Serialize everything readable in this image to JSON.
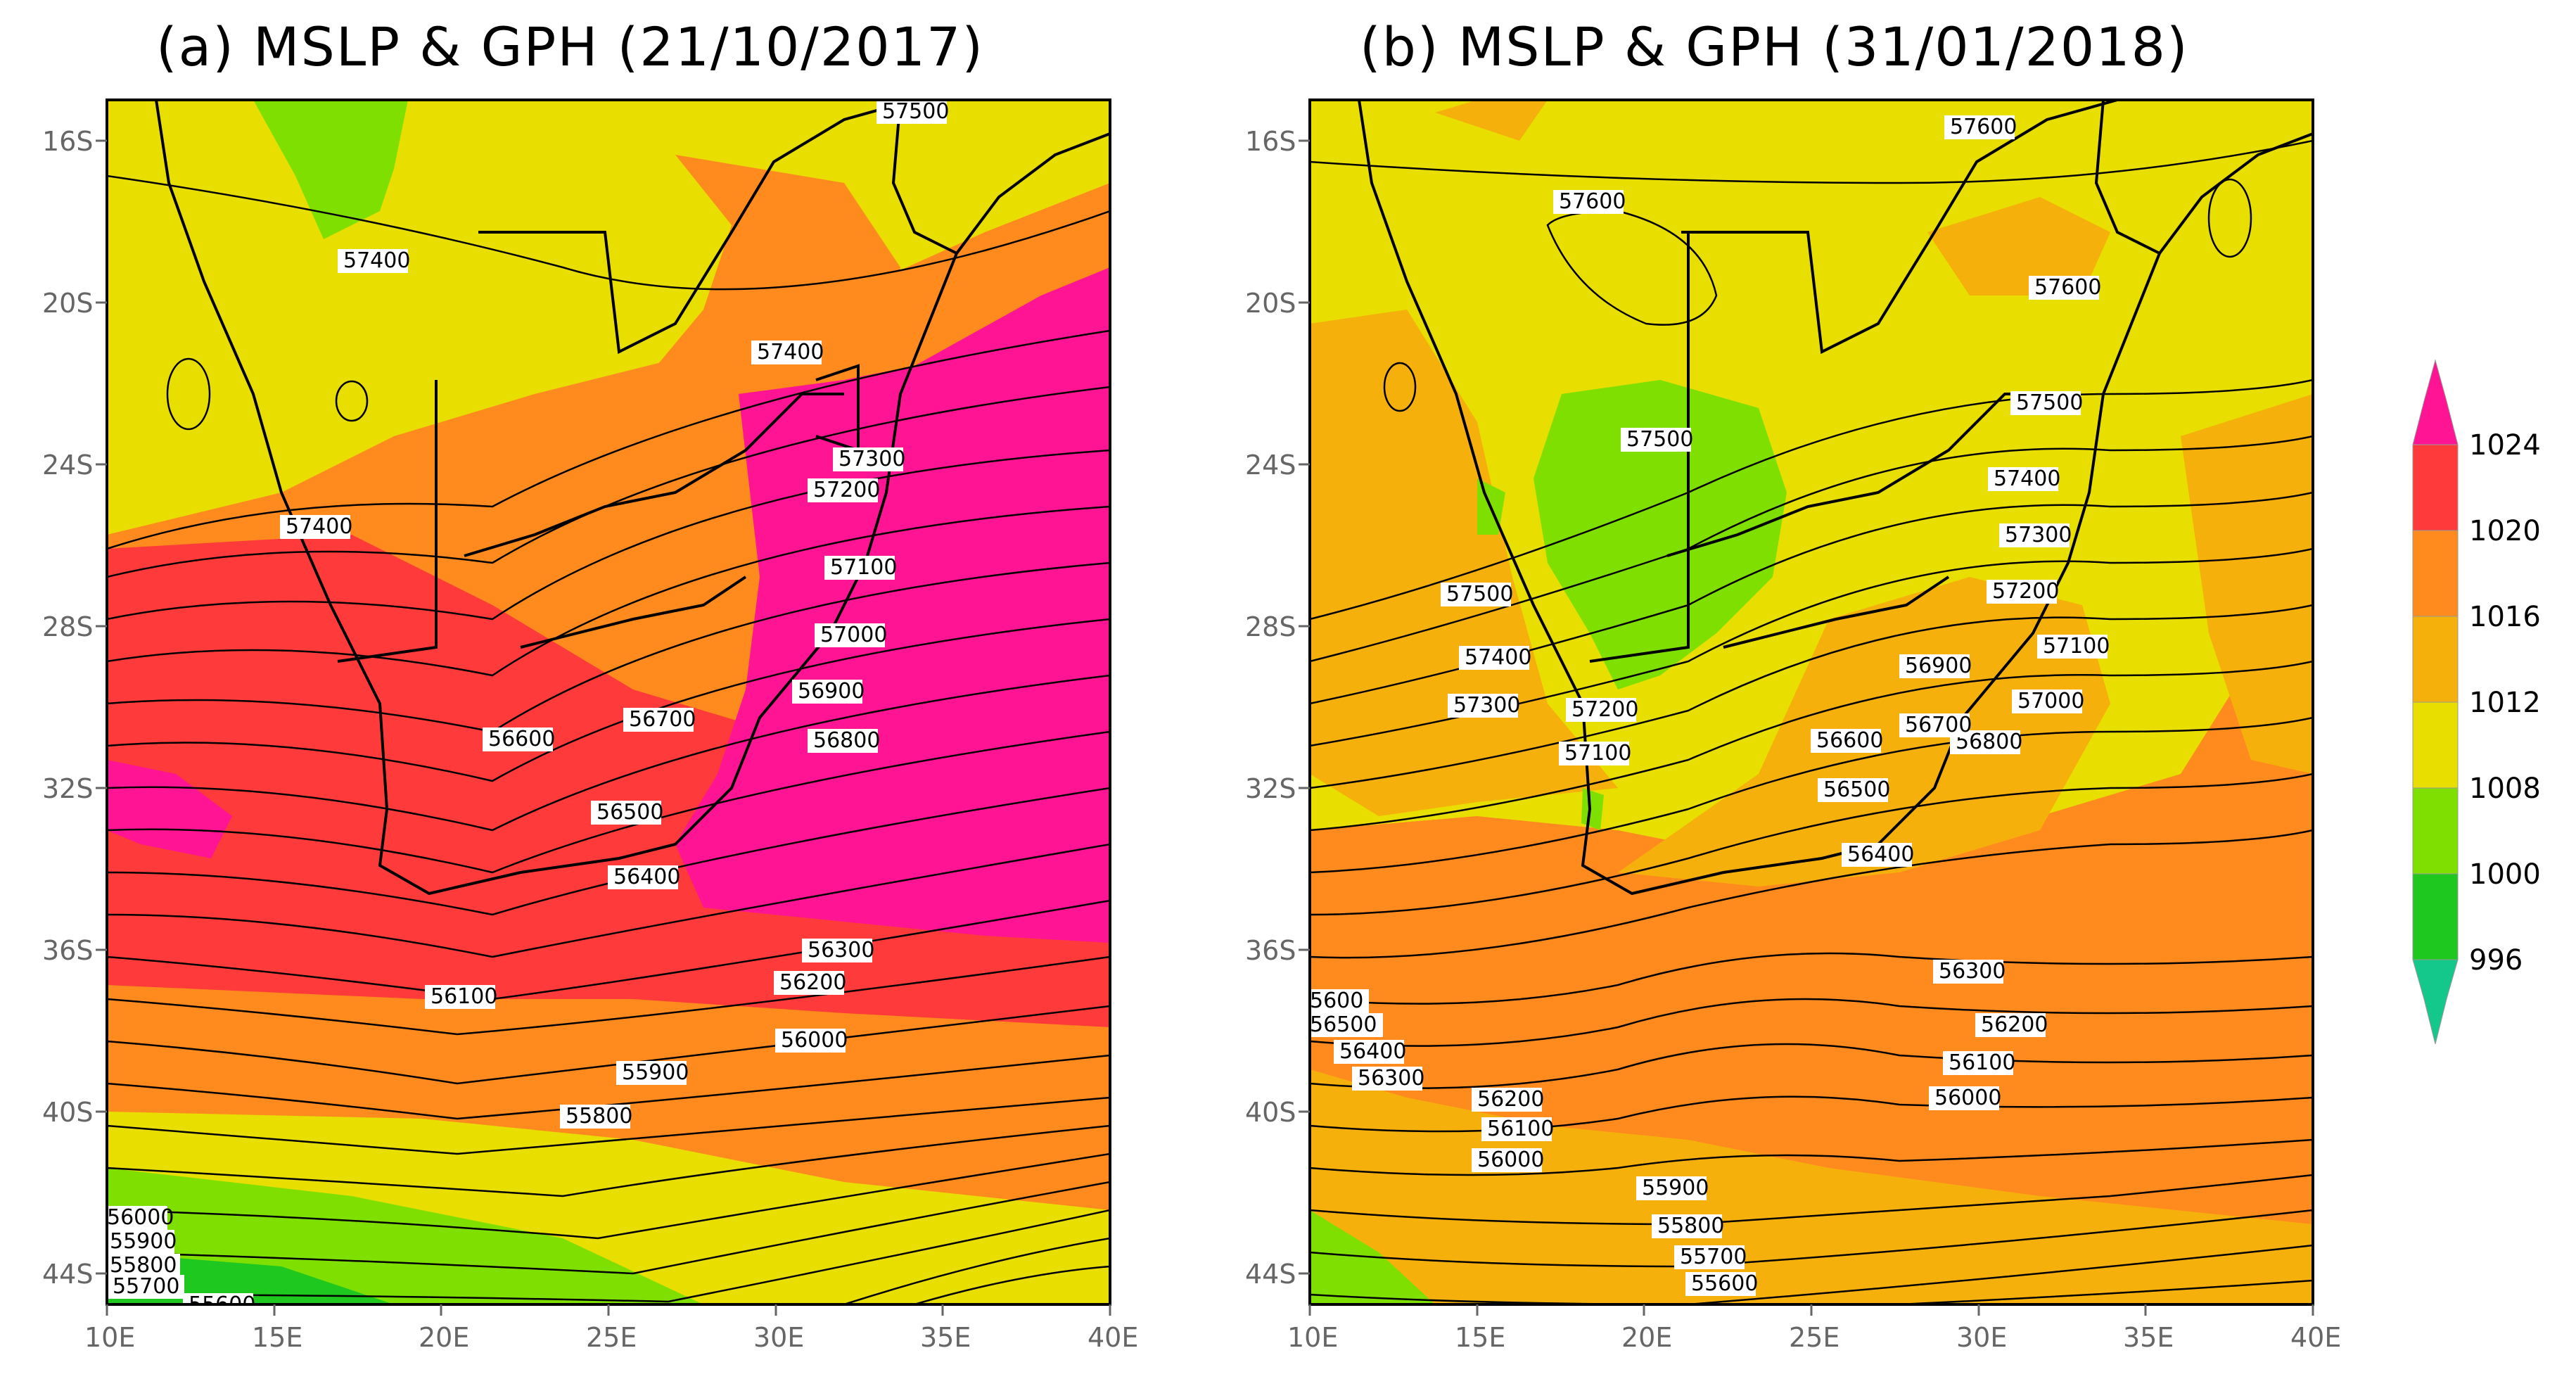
{
  "panels": [
    {
      "id": "a",
      "title": "(a) MSLP & GPH (21/10/2017)",
      "contour_labels": [
        "57500",
        "57400",
        "57400",
        "57400",
        "57300",
        "57200",
        "57100",
        "57000",
        "56900",
        "56800",
        "56700",
        "56600",
        "56500",
        "56400",
        "56300",
        "56200",
        "56100",
        "56000",
        "55900",
        "55800",
        "56000",
        "55900",
        "55800",
        "55700",
        "55600"
      ]
    },
    {
      "id": "b",
      "title": "(b) MSLP & GPH (31/01/2018)",
      "contour_labels": [
        "57600",
        "57600",
        "57600",
        "57500",
        "57500",
        "57500",
        "57400",
        "57400",
        "57300",
        "57300",
        "57200",
        "57200",
        "57100",
        "57100",
        "57000",
        "56900",
        "56800",
        "56700",
        "56600",
        "56500",
        "56400",
        "56300",
        "56200",
        "56100",
        "56000",
        "5600",
        "56500",
        "56400",
        "56300",
        "56200",
        "56100",
        "56000",
        "55900",
        "55800",
        "55700",
        "55600"
      ]
    }
  ],
  "axes": {
    "x_ticks": [
      "10E",
      "15E",
      "20E",
      "25E",
      "30E",
      "35E",
      "40E"
    ],
    "y_ticks": [
      "16S",
      "20S",
      "24S",
      "28S",
      "32S",
      "36S",
      "40S",
      "44S"
    ]
  },
  "colorbar": {
    "labels": [
      "1024",
      "1020",
      "1016",
      "1012",
      "1008",
      "1000",
      "996"
    ],
    "colors": [
      "#ff1493",
      "#ff3a3a",
      "#ff8a1e",
      "#f5b00c",
      "#e8de00",
      "#7fe000",
      "#1ec81e",
      "#14c88c"
    ]
  }
}
